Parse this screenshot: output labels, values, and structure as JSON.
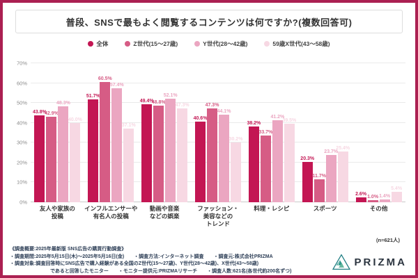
{
  "title": "普段、SNSで最もよく閲覧するコンテンツは何ですか?(複数回答可)",
  "frame_color": "#AB2052",
  "chart_data": {
    "type": "bar",
    "title": "普段、SNSで最もよく閲覧するコンテンツは何ですか?(複数回答可)",
    "categories": [
      "友人や家族の投稿",
      "インフルエンサーや有名人の投稿",
      "動画や音楽などの娯楽",
      "ファッション・美容などのトレンド",
      "料理・レシピ",
      "スポーツ",
      "その他"
    ],
    "category_lines": [
      [
        "友人や家族の",
        "投稿"
      ],
      [
        "インフルエンサーや",
        "有名人の投稿"
      ],
      [
        "動画や音楽",
        "などの娯楽"
      ],
      [
        "ファッション・",
        "美容などの",
        "トレンド"
      ],
      [
        "料理・レシピ"
      ],
      [
        "スポーツ"
      ],
      [
        "その他"
      ]
    ],
    "series": [
      {
        "name": "全体",
        "color": "#C31653",
        "values": [
          43.8,
          51.7,
          49.4,
          40.6,
          38.2,
          20.3,
          2.6
        ]
      },
      {
        "name": "Z世代(15〜27歳)",
        "color": "#D65C85",
        "values": [
          42.9,
          60.5,
          48.8,
          47.3,
          33.7,
          11.7,
          1.0
        ]
      },
      {
        "name": "Y世代(28〜42歳)",
        "color": "#EBA6C1",
        "values": [
          48.3,
          57.4,
          52.1,
          44.1,
          41.2,
          23.7,
          1.4
        ]
      },
      {
        "name": "59歳X世代(43〜58歳)",
        "color": "#F7D8E3",
        "values": [
          40.0,
          37.1,
          47.3,
          30.2,
          39.5,
          25.4,
          5.4
        ]
      }
    ],
    "ylim": [
      0,
      70
    ],
    "ytick_step": 10,
    "ytick_suffix": "%",
    "value_suffix": "%",
    "grid": true,
    "legend_position": "top"
  },
  "sample_note": "(n=621人)",
  "footer": {
    "lines": [
      {
        "text": "《調査概要:2025年最新版 SNS広告の購買行動調査》",
        "indent": false
      },
      {
        "text": "・調査期間:2025年5月15日(木)〜2025年5月16日(金)　　・調査方法:インターネット調査　　・調査元:株式会社PRIZMA",
        "indent": false
      },
      {
        "text": "・調査対象:調査回答時にSNS広告で購入経験がある全国のZ世代(15〜27歳)、Y世代(28〜42歳)、X世代(43〜58歳)",
        "indent": false
      },
      {
        "text": "であると回答したモニター　　・モニター提供元:PRIZMAリサーチ　　・調査人数:621名(各世代約200名ずつ)",
        "indent": true
      }
    ]
  },
  "logo": {
    "text": "PRIZMA"
  }
}
